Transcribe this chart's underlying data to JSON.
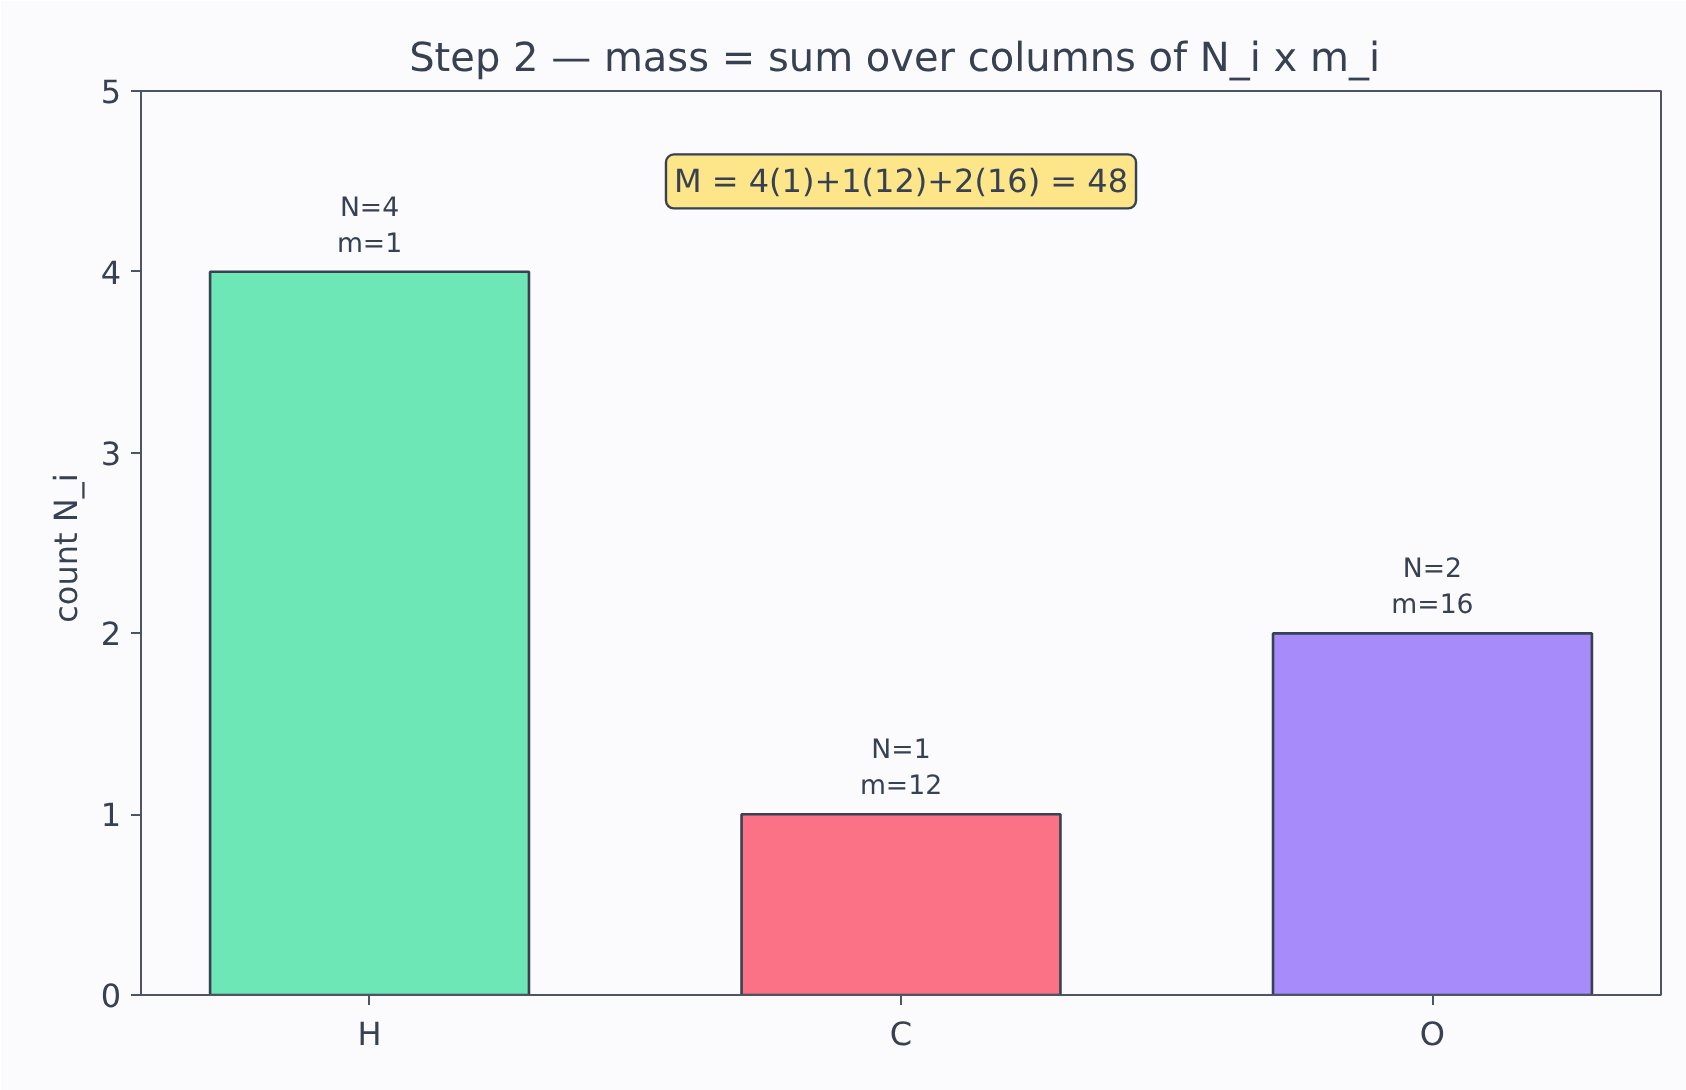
{
  "chart_data": {
    "type": "bar",
    "title": "Step 2 — mass = sum over columns of  N_i x m_i",
    "ylabel": "count  N_i",
    "categories": [
      "H",
      "C",
      "O"
    ],
    "values": [
      4,
      1,
      2
    ],
    "colors": [
      "#6ee7b7",
      "#fb7185",
      "#a78bfa"
    ],
    "value_labels": [
      "N=4\nm=1",
      "N=1\nm=12",
      "N=2\nm=16"
    ],
    "annotations": [
      "M = 4(1)+1(12)+2(16) = 48"
    ],
    "ylim": [
      0,
      5
    ],
    "yticks": [
      0,
      1,
      2,
      3,
      4,
      5
    ],
    "grid": false
  }
}
